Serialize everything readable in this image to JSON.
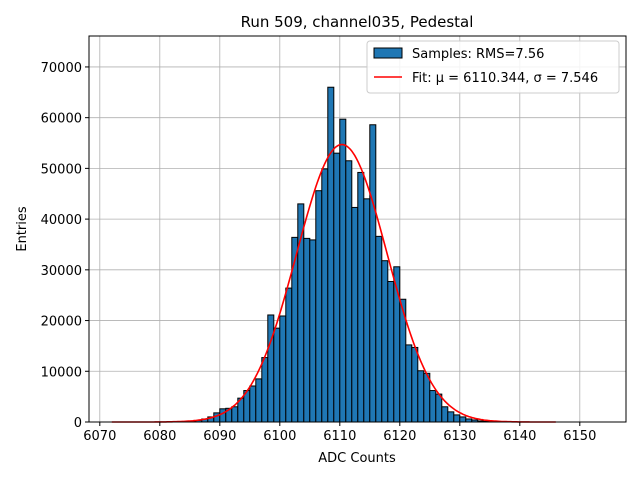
{
  "chart_data": {
    "type": "bar",
    "title": "Run 509, channel035, Pedestal",
    "xlabel": "ADC Counts",
    "ylabel": "Entries",
    "xlim": [
      6068.2,
      6157.7
    ],
    "ylim": [
      0,
      76100
    ],
    "grid": true,
    "legend_placement": "top-right",
    "xticks": [
      6070,
      6080,
      6090,
      6100,
      6110,
      6120,
      6130,
      6140,
      6150
    ],
    "yticks": [
      0,
      10000,
      20000,
      30000,
      40000,
      50000,
      60000,
      70000
    ],
    "bin_width": 1,
    "bin_starts": [
      6085,
      6086,
      6087,
      6088,
      6089,
      6090,
      6091,
      6092,
      6093,
      6094,
      6095,
      6096,
      6097,
      6098,
      6099,
      6100,
      6101,
      6102,
      6103,
      6104,
      6105,
      6106,
      6107,
      6108,
      6109,
      6110,
      6111,
      6112,
      6113,
      6114,
      6115,
      6116,
      6117,
      6118,
      6119,
      6120,
      6121,
      6122,
      6123,
      6124,
      6125,
      6126,
      6127,
      6128,
      6129,
      6130,
      6131,
      6132,
      6133,
      6134
    ],
    "values": [
      150,
      300,
      600,
      1000,
      1800,
      2600,
      2700,
      3000,
      4700,
      6200,
      7100,
      8500,
      12700,
      21100,
      18500,
      20900,
      26400,
      36400,
      43000,
      36200,
      35900,
      45600,
      49900,
      66000,
      53000,
      59700,
      51500,
      42300,
      49200,
      44000,
      58600,
      36600,
      31800,
      27700,
      30600,
      24200,
      15200,
      14700,
      10100,
      9600,
      6200,
      5500,
      3000,
      2000,
      1400,
      1000,
      600,
      400,
      200,
      100
    ],
    "fit": {
      "mu": 6110.344,
      "sigma": 7.546,
      "amplitude": 54700,
      "x_range": [
        6072,
        6146
      ]
    },
    "series": [
      {
        "name": "Samples: RMS=7.56",
        "color": "#1f77b4",
        "edge_color": "#000000"
      },
      {
        "name": "Fit: μ = 6110.344, σ = 7.546",
        "color": "#ff0000"
      }
    ]
  }
}
